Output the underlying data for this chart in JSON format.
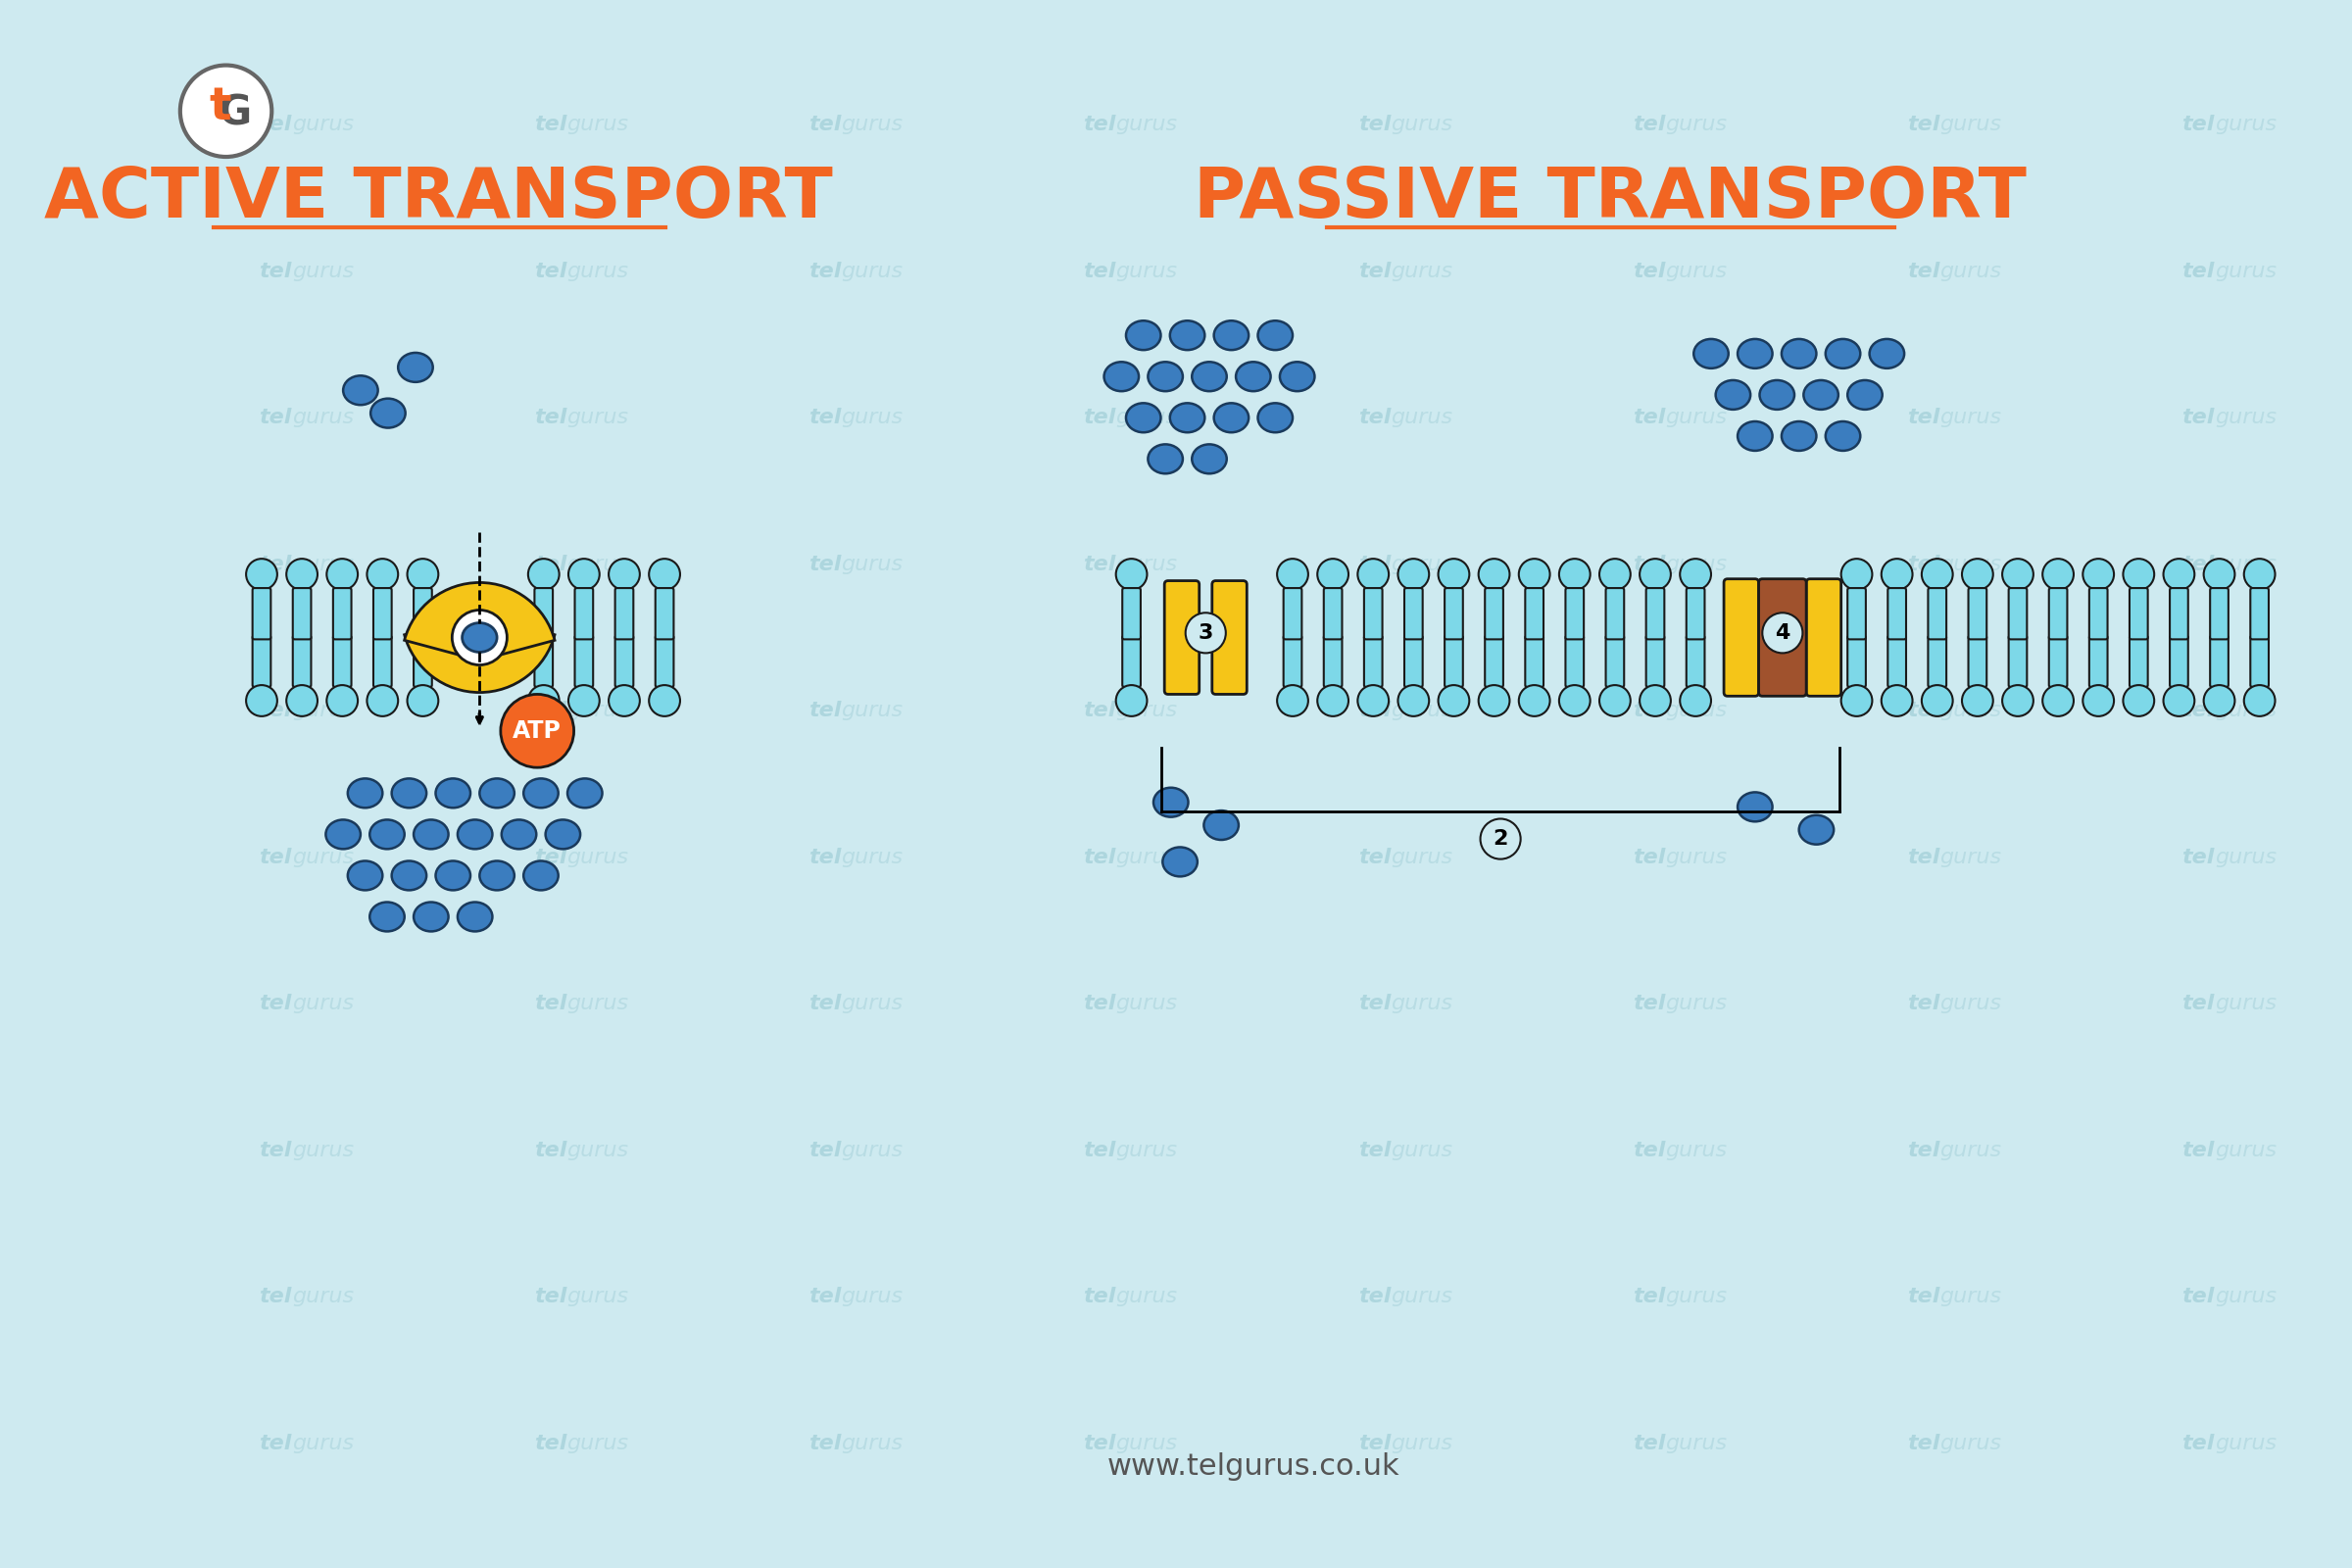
{
  "bg_color": "#ceeaf0",
  "title_color": "#f26522",
  "title_active": "ACTIVE TRANSPORT",
  "title_passive": "PASSIVE TRANSPORT",
  "membrane_color": "#7dd8e8",
  "membrane_outline": "#1a1a1a",
  "particle_color": "#3b7dbf",
  "particle_outline": "#1a3a5c",
  "protein_yellow": "#f5c518",
  "protein_brown": "#a0522d",
  "atp_color": "#f26522",
  "watermark_color": "#aad4dc",
  "footer_text": "www.telgurus.co.uk",
  "label2": "2",
  "label3": "3",
  "label4": "4"
}
